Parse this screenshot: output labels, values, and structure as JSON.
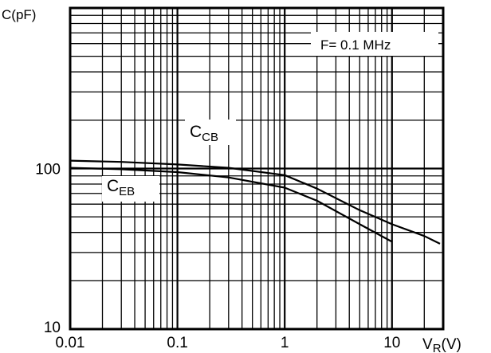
{
  "chart_data": {
    "type": "line",
    "title": "",
    "ylabel": "C(pF)",
    "xlabel": "V",
    "xlabel_sub": "R",
    "xlabel_unit": "(V)",
    "x_scale": "log",
    "y_scale": "log",
    "xlim": [
      0.01,
      30
    ],
    "ylim": [
      10,
      1000
    ],
    "x_ticks": [
      {
        "value": 0.01,
        "label": "0.01"
      },
      {
        "value": 0.1,
        "label": "0.1"
      },
      {
        "value": 1,
        "label": "1"
      },
      {
        "value": 10,
        "label": "10"
      }
    ],
    "y_ticks": [
      {
        "value": 10,
        "label": "10"
      },
      {
        "value": 100,
        "label": "100"
      }
    ],
    "grid": true,
    "annotation": "F= 0.1 MHz",
    "series": [
      {
        "name": "CCB",
        "label_main": "C",
        "label_sub": "CB",
        "x": [
          0.01,
          0.03,
          0.1,
          0.3,
          1,
          2,
          5,
          10,
          20,
          28
        ],
        "y": [
          112,
          110,
          106,
          101,
          91,
          75,
          55,
          45,
          38,
          34
        ]
      },
      {
        "name": "CEB",
        "label_main": "C",
        "label_sub": "EB",
        "x": [
          0.01,
          0.03,
          0.1,
          0.3,
          1,
          2,
          5,
          10
        ],
        "y": [
          101,
          99,
          95,
          88,
          76,
          63,
          45,
          35
        ]
      }
    ]
  }
}
